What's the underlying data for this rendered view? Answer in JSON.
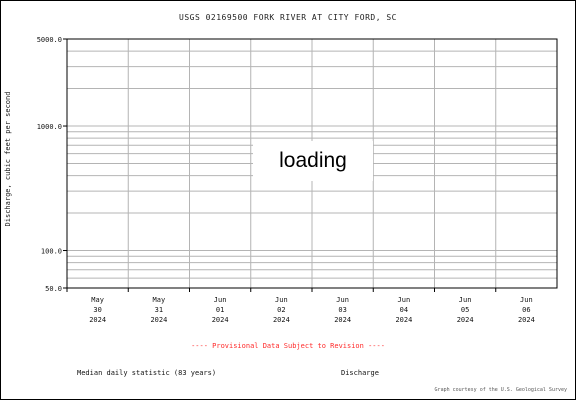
{
  "chart_data": {
    "type": "line",
    "title": "USGS 02169500 FORK RIVER AT CITY FORD, SC",
    "ylabel": "Discharge, cubic feet per second",
    "y_scale": "log",
    "ylim": [
      50,
      5000
    ],
    "y_ticks": [
      {
        "value": 5000,
        "label": "5000.0"
      },
      {
        "value": 1000,
        "label": "1000.0"
      },
      {
        "value": 100,
        "label": "100.0"
      },
      {
        "value": 50,
        "label": "50.0"
      }
    ],
    "x_ticks": [
      {
        "line1": "May",
        "line2": "30",
        "line3": "2024"
      },
      {
        "line1": "May",
        "line2": "31",
        "line3": "2024"
      },
      {
        "line1": "Jun",
        "line2": "01",
        "line3": "2024"
      },
      {
        "line1": "Jun",
        "line2": "02",
        "line3": "2024"
      },
      {
        "line1": "Jun",
        "line2": "03",
        "line3": "2024"
      },
      {
        "line1": "Jun",
        "line2": "04",
        "line3": "2024"
      },
      {
        "line1": "Jun",
        "line2": "05",
        "line3": "2024"
      },
      {
        "line1": "Jun",
        "line2": "06",
        "line3": "2024"
      }
    ],
    "grid": true,
    "series": [],
    "annotation": "---- Provisional Data Subject to Revision ----"
  },
  "overlay": {
    "loading_text": "loading"
  },
  "legend": {
    "median_label": "Median daily statistic (83 years)",
    "series_label": "Discharge"
  },
  "footer": {
    "created_text": "Graph courtesy of the U.S. Geological Survey"
  },
  "colors": {
    "grid": "#b4b4b4",
    "axis": "#000000",
    "annotation": "#ff2a2a"
  }
}
